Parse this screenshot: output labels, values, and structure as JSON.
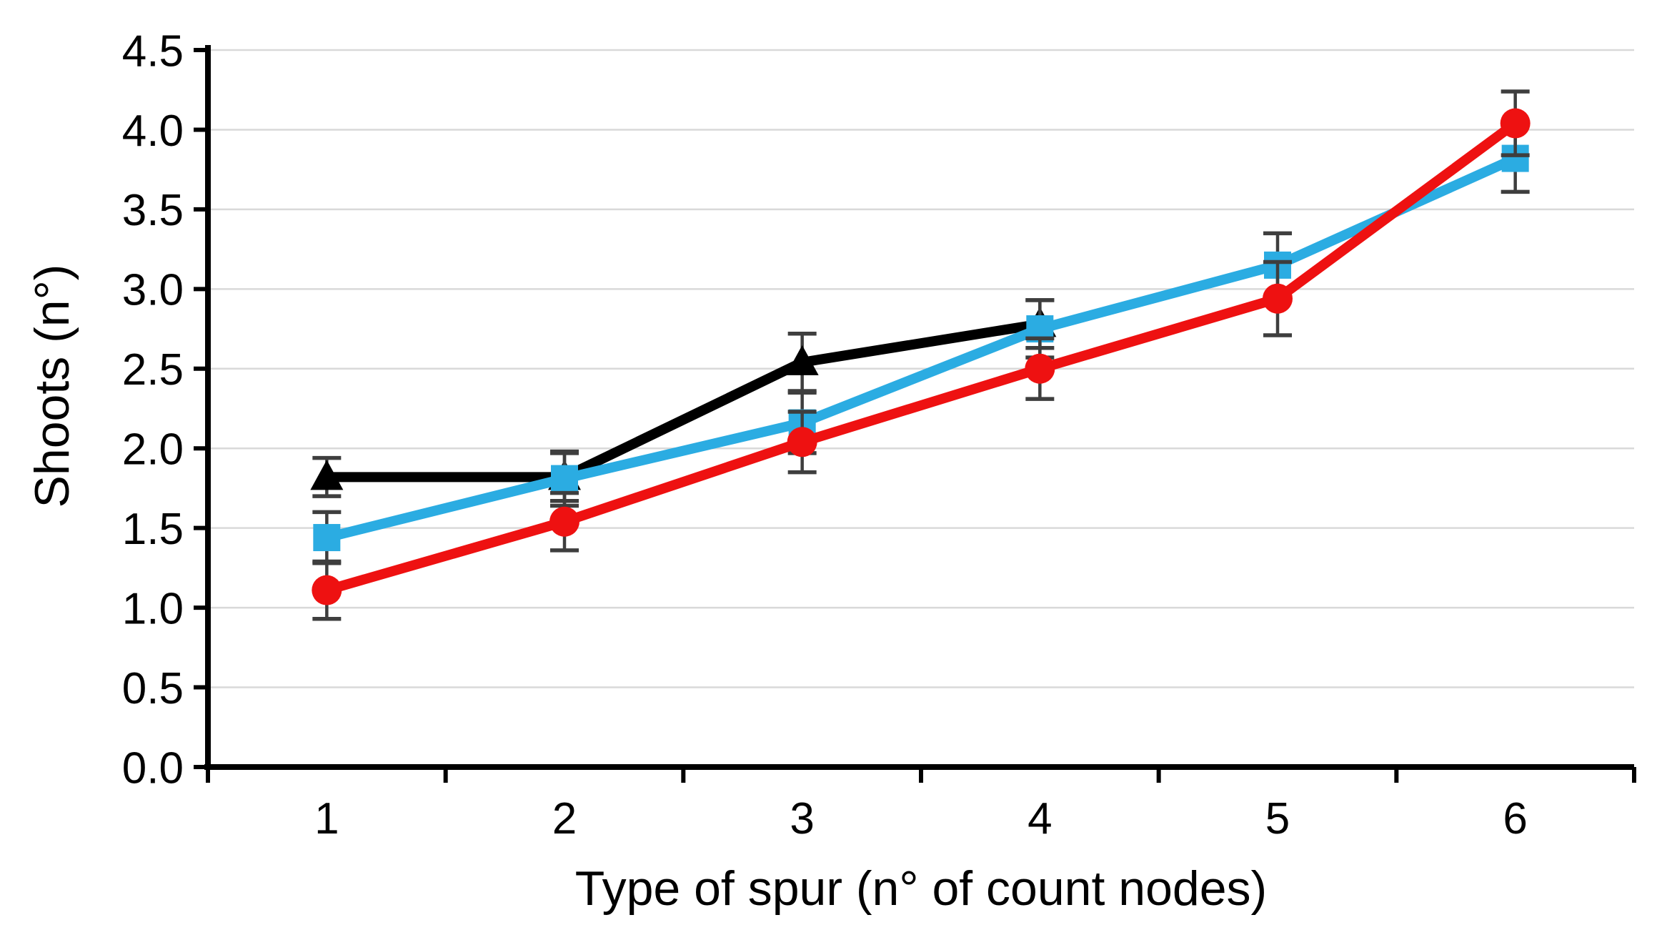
{
  "chart_data": {
    "type": "line",
    "title": "",
    "xlabel": "Type of spur (n° of count nodes)",
    "ylabel": "Shoots (n°)",
    "x": [
      1,
      2,
      3,
      4,
      5,
      6
    ],
    "xtick_labels": [
      "1",
      "2",
      "3",
      "4",
      "5",
      "6"
    ],
    "ylim": [
      0,
      4.5
    ],
    "ytick_step": 0.5,
    "ytick_labels": [
      "0.0",
      "0.5",
      "1.0",
      "1.5",
      "2.0",
      "2.5",
      "3.0",
      "3.5",
      "4.0",
      "4.5"
    ],
    "grid": true,
    "legend": "none",
    "error_bars": true,
    "series": [
      {
        "name": "black-triangle-series",
        "marker": "triangle",
        "color": "#000000",
        "values": [
          1.82,
          1.82,
          2.54,
          2.78
        ],
        "errors": [
          0.12,
          0.15,
          0.18,
          0.15
        ]
      },
      {
        "name": "blue-square-series",
        "marker": "square",
        "color": "#2BACE2",
        "values": [
          1.44,
          1.81,
          2.16,
          2.75,
          3.15,
          3.82
        ],
        "errors": [
          0.16,
          0.17,
          0.19,
          0.18,
          0.2,
          0.21
        ]
      },
      {
        "name": "red-circle-series",
        "marker": "circle",
        "color": "#EE1111",
        "values": [
          1.11,
          1.54,
          2.04,
          2.5,
          2.94,
          4.04
        ],
        "errors": [
          0.18,
          0.18,
          0.19,
          0.19,
          0.23,
          0.2
        ]
      }
    ],
    "colors": {
      "background": "#FFFFFF",
      "gridline": "#D9D9D9",
      "axis": "#000000",
      "error_bar": "#3E3E3E",
      "text": "#000000"
    }
  }
}
